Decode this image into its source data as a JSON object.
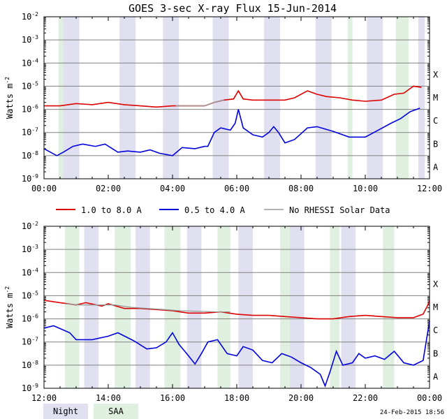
{
  "title": "GOES 3-sec X-ray Flux    15-Jun-2014",
  "ylabel": "Watts m",
  "ylabel_exp": "-2",
  "legend": {
    "series": [
      {
        "label": "1.0 to 8.0 A",
        "color": "#dd0000"
      },
      {
        "label": "0.5 to 4.0 A",
        "color": "#0000dd"
      },
      {
        "label": "No RHESSI Solar Data",
        "color": "#999999"
      }
    ],
    "bands": [
      {
        "label": "Night",
        "color": "#e0e0f0"
      },
      {
        "label": "SAA",
        "color": "#e0f0e0"
      }
    ]
  },
  "timestamp": "24-Feb-2015 18:56",
  "flare_classes": [
    "X",
    "M",
    "C",
    "B",
    "A"
  ],
  "y_ticks": [
    {
      "base": "10",
      "exp": "-2"
    },
    {
      "base": "10",
      "exp": "-3"
    },
    {
      "base": "10",
      "exp": "-4"
    },
    {
      "base": "10",
      "exp": "-5"
    },
    {
      "base": "10",
      "exp": "-6"
    },
    {
      "base": "10",
      "exp": "-7"
    },
    {
      "base": "10",
      "exp": "-8"
    },
    {
      "base": "10",
      "exp": "-9"
    }
  ],
  "chart_data": [
    {
      "type": "line",
      "panel": "top",
      "xlim": [
        0,
        12
      ],
      "ylim_log10": [
        -9,
        -2
      ],
      "xticks": [
        0,
        2,
        4,
        6,
        8,
        10,
        12
      ],
      "xtick_labels": [
        "00:00",
        "02:00",
        "04:00",
        "06:00",
        "08:00",
        "10:00",
        "12:00"
      ],
      "night_bands": [
        [
          0.6,
          1.1
        ],
        [
          2.35,
          2.85
        ],
        [
          3.7,
          4.2
        ],
        [
          5.25,
          5.75
        ],
        [
          6.85,
          7.35
        ],
        [
          8.45,
          8.95
        ],
        [
          10.05,
          10.55
        ],
        [
          11.65,
          11.85
        ]
      ],
      "saa_bands": [
        [
          0.45,
          0.6
        ],
        [
          9.45,
          9.6
        ],
        [
          10.95,
          11.35
        ]
      ],
      "series": [
        {
          "name": "1.0 to 8.0 A",
          "x": [
            0,
            0.5,
            1.0,
            1.5,
            2.0,
            2.5,
            3.0,
            3.5,
            4.0,
            4.5,
            5.0,
            5.3,
            5.6,
            5.9,
            6.05,
            6.2,
            6.5,
            7.0,
            7.5,
            7.8,
            8.2,
            8.5,
            8.8,
            9.2,
            9.6,
            10.0,
            10.5,
            10.9,
            11.2,
            11.5,
            11.75
          ],
          "logy": [
            -5.85,
            -5.85,
            -5.75,
            -5.8,
            -5.7,
            -5.8,
            -5.85,
            -5.9,
            -5.85,
            -5.85,
            -5.85,
            -5.7,
            -5.6,
            -5.55,
            -5.2,
            -5.55,
            -5.6,
            -5.6,
            -5.6,
            -5.5,
            -5.2,
            -5.35,
            -5.45,
            -5.5,
            -5.6,
            -5.65,
            -5.6,
            -5.35,
            -5.3,
            -5.0,
            -5.05
          ]
        },
        {
          "name": "0.5 to 4.0 A",
          "x": [
            0,
            0.4,
            0.6,
            0.9,
            1.2,
            1.6,
            1.9,
            2.3,
            2.6,
            3.0,
            3.3,
            3.6,
            4.0,
            4.3,
            4.7,
            5.0,
            5.1,
            5.3,
            5.5,
            5.8,
            5.95,
            6.05,
            6.2,
            6.5,
            6.8,
            7.0,
            7.15,
            7.3,
            7.5,
            7.8,
            8.2,
            8.5,
            9.0,
            9.5,
            10.0,
            10.4,
            10.8,
            11.1,
            11.4,
            11.7
          ],
          "logy": [
            -7.7,
            -8.0,
            -7.85,
            -7.6,
            -7.5,
            -7.6,
            -7.5,
            -7.85,
            -7.8,
            -7.85,
            -7.75,
            -7.9,
            -8.0,
            -7.65,
            -7.7,
            -7.6,
            -7.6,
            -7.0,
            -6.8,
            -6.9,
            -6.6,
            -6.0,
            -6.8,
            -7.1,
            -7.2,
            -7.0,
            -6.75,
            -7.0,
            -7.45,
            -7.3,
            -6.8,
            -6.75,
            -6.95,
            -7.2,
            -7.2,
            -6.9,
            -6.6,
            -6.4,
            -6.1,
            -5.95
          ]
        },
        {
          "name": "No RHESSI Solar Data",
          "x": [
            4.1,
            4.6,
            5.0,
            5.3,
            5.6
          ],
          "logy": [
            -5.85,
            -5.85,
            -5.85,
            -5.7,
            -5.6
          ]
        }
      ]
    },
    {
      "type": "line",
      "panel": "bottom",
      "xlim": [
        12,
        24
      ],
      "ylim_log10": [
        -9,
        -2
      ],
      "xticks": [
        12,
        14,
        16,
        18,
        20,
        22,
        24
      ],
      "xtick_labels": [
        "12:00",
        "14:00",
        "16:00",
        "18:00",
        "20:00",
        "22:00",
        "00:00"
      ],
      "night_bands": [
        [
          13.25,
          13.7
        ],
        [
          14.85,
          15.3
        ],
        [
          16.45,
          16.9
        ],
        [
          18.05,
          18.5
        ],
        [
          19.65,
          20.1
        ],
        [
          21.25,
          21.7
        ]
      ],
      "saa_bands": [
        [
          12.65,
          13.1
        ],
        [
          14.2,
          14.7
        ],
        [
          15.75,
          16.25
        ],
        [
          17.4,
          17.8
        ],
        [
          19.35,
          19.65
        ],
        [
          20.9,
          21.2
        ],
        [
          22.55,
          22.9
        ]
      ],
      "series": [
        {
          "name": "1.0 to 8.0 A",
          "x": [
            12,
            12.5,
            13.0,
            13.3,
            13.8,
            14.0,
            14.5,
            15.0,
            15.5,
            16.0,
            16.5,
            17.0,
            17.5,
            18.0,
            18.5,
            19.0,
            19.5,
            20.0,
            20.5,
            21.0,
            21.5,
            22.0,
            22.5,
            23.0,
            23.5,
            23.8,
            23.95,
            24.0
          ],
          "logy": [
            -5.2,
            -5.3,
            -5.4,
            -5.3,
            -5.45,
            -5.35,
            -5.55,
            -5.55,
            -5.6,
            -5.65,
            -5.75,
            -5.75,
            -5.7,
            -5.8,
            -5.85,
            -5.85,
            -5.9,
            -5.95,
            -6.0,
            -6.0,
            -5.9,
            -5.85,
            -5.9,
            -5.95,
            -5.95,
            -5.8,
            -5.4,
            -5.2
          ]
        },
        {
          "name": "0.5 to 4.0 A",
          "x": [
            12,
            12.3,
            12.8,
            13.0,
            13.5,
            14.0,
            14.3,
            14.8,
            15.2,
            15.5,
            15.8,
            16.0,
            16.2,
            16.5,
            16.7,
            16.9,
            17.1,
            17.4,
            17.7,
            18.0,
            18.2,
            18.5,
            18.8,
            19.1,
            19.4,
            19.7,
            20.0,
            20.3,
            20.6,
            20.75,
            20.9,
            21.1,
            21.3,
            21.6,
            21.8,
            22.0,
            22.3,
            22.6,
            22.9,
            23.2,
            23.5,
            23.8,
            24.0
          ],
          "logy": [
            -6.4,
            -6.3,
            -6.6,
            -6.9,
            -6.9,
            -6.75,
            -6.6,
            -6.95,
            -7.3,
            -7.25,
            -7.0,
            -6.6,
            -7.1,
            -7.6,
            -7.95,
            -7.5,
            -7.0,
            -6.9,
            -7.5,
            -7.6,
            -7.2,
            -7.35,
            -7.8,
            -7.9,
            -7.5,
            -7.65,
            -7.9,
            -8.1,
            -8.4,
            -8.9,
            -8.3,
            -7.4,
            -8.0,
            -7.9,
            -7.5,
            -7.7,
            -7.6,
            -7.75,
            -7.4,
            -7.9,
            -8.0,
            -7.8,
            -6.1
          ]
        },
        {
          "name": "No RHESSI Solar Data",
          "x": [
            12.65,
            13.1,
            14.2,
            14.7,
            15.75,
            16.25,
            17.4,
            17.8
          ],
          "logy": [
            -5.35,
            -5.4,
            -5.4,
            -5.5,
            -5.6,
            -5.65,
            -5.7,
            -5.7
          ]
        }
      ]
    }
  ]
}
